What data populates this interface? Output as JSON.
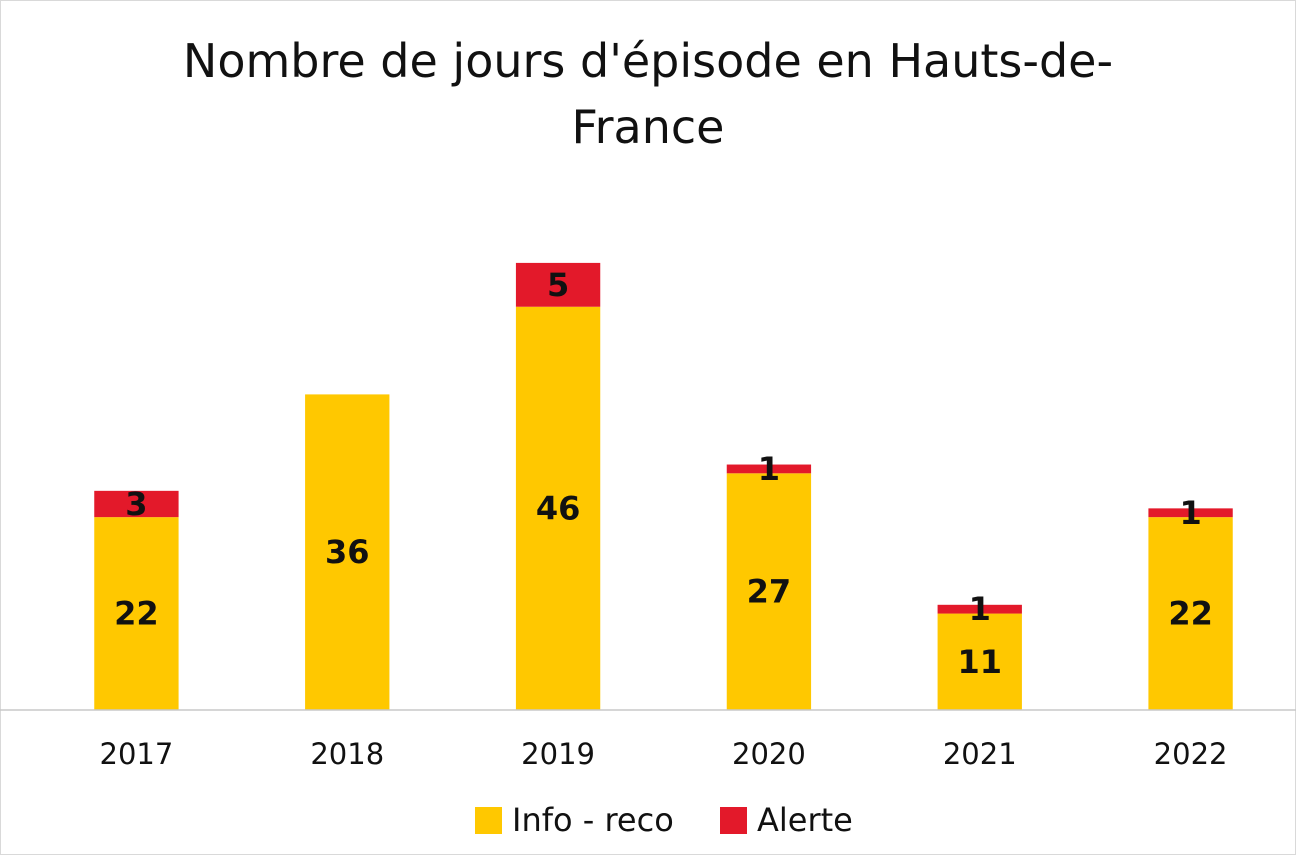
{
  "chart_data": {
    "type": "stacked_bar",
    "title": "Nombre de jours d'épisode en Hauts-de-France",
    "categories": [
      "2017",
      "2018",
      "2019",
      "2020",
      "2021",
      "2022"
    ],
    "series": [
      {
        "name": "Info - reco",
        "color": "#ffc800",
        "values": [
          22,
          36,
          46,
          27,
          11,
          22
        ]
      },
      {
        "name": "Alerte",
        "color": "#e3192a",
        "values": [
          3,
          null,
          5,
          1,
          1,
          1
        ]
      }
    ],
    "ylim": [
      0,
      60
    ],
    "legend": "bottom"
  }
}
